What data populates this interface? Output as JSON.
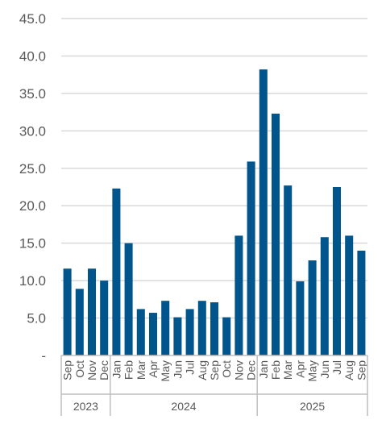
{
  "chart_data": {
    "type": "bar",
    "title": "",
    "xlabel": "",
    "ylabel": "",
    "ylim": [
      0,
      45
    ],
    "yticks": [
      "-",
      "5.0",
      "10.0",
      "15.0",
      "20.0",
      "25.0",
      "30.0",
      "35.0",
      "40.0",
      "45.0"
    ],
    "grid": true,
    "legend": "none",
    "bar_color": "#00558C",
    "categories": [
      "Sep",
      "Oct",
      "Nov",
      "Dec",
      "Jan",
      "Feb",
      "Mar",
      "Apr",
      "May",
      "Jun",
      "Jul",
      "Aug",
      "Sep",
      "Oct",
      "Nov",
      "Dec",
      "Jan",
      "Feb",
      "Mar",
      "Apr",
      "May",
      "Jun",
      "Jul",
      "Aug",
      "Sep"
    ],
    "values": [
      11.6,
      8.9,
      11.6,
      10.0,
      22.3,
      15.0,
      6.2,
      5.7,
      7.3,
      5.1,
      6.2,
      7.3,
      7.1,
      5.1,
      16.0,
      25.9,
      38.2,
      32.3,
      22.7,
      9.9,
      12.7,
      15.8,
      22.5,
      16.0,
      14.0
    ],
    "years": [
      {
        "label": "2023",
        "count": 4
      },
      {
        "label": "2024",
        "count": 12
      },
      {
        "label": "2025",
        "count": 9
      }
    ]
  }
}
